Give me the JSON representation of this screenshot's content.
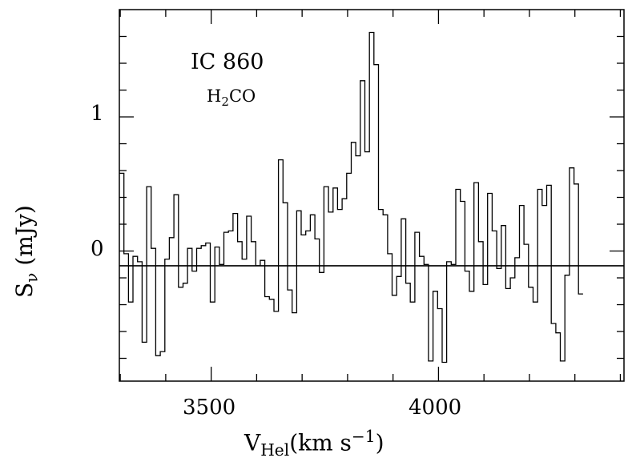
{
  "chart_data": {
    "type": "line",
    "step": true,
    "annotations": {
      "object": "IC 860",
      "line_main": "H",
      "line_sub": "2",
      "line_tail": "CO"
    },
    "xlabel": {
      "main": "V",
      "sub": "Hel",
      "units_pre": "(km s",
      "units_sup": "−1",
      "units_post": ")"
    },
    "ylabel": {
      "main": "S",
      "sub": "ν",
      "units": " (mJy)"
    },
    "xlim": [
      3298,
      4408
    ],
    "ylim": [
      -0.97,
      1.8
    ],
    "xticks_major": [
      3500,
      4000
    ],
    "xtick_labels": [
      "3500",
      "4000"
    ],
    "yticks_major": [
      0,
      1
    ],
    "ytick_labels": [
      "0",
      "1"
    ],
    "grid": false,
    "baseline": -0.11,
    "series": [
      {
        "bin_width": 10,
        "x_start": 3298,
        "values": [
          0.58,
          -0.02,
          -0.38,
          -0.04,
          -0.08,
          -0.68,
          0.48,
          0.02,
          -0.78,
          -0.75,
          -0.06,
          0.1,
          0.42,
          -0.27,
          -0.24,
          0.02,
          -0.15,
          0.02,
          0.04,
          0.06,
          -0.38,
          0.03,
          -0.1,
          0.14,
          0.15,
          0.28,
          0.07,
          -0.06,
          0.26,
          0.07,
          -0.11,
          -0.07,
          -0.34,
          -0.36,
          -0.45,
          0.68,
          0.36,
          -0.29,
          -0.46,
          0.3,
          0.12,
          0.15,
          0.27,
          0.09,
          -0.16,
          0.48,
          0.29,
          0.47,
          0.31,
          0.39,
          0.58,
          0.81,
          0.71,
          1.27,
          0.74,
          1.63,
          1.39,
          0.31,
          0.27,
          -0.02,
          -0.33,
          -0.19,
          0.24,
          -0.24,
          -0.38,
          0.14,
          -0.04,
          -0.1,
          -0.82,
          -0.3,
          -0.43,
          -0.83,
          -0.08,
          -0.1,
          0.46,
          0.37,
          -0.15,
          -0.3,
          0.51,
          0.07,
          -0.25,
          0.43,
          0.15,
          -0.13,
          0.19,
          -0.28,
          -0.2,
          -0.05,
          0.34,
          0.05,
          -0.27,
          -0.38,
          0.46,
          0.34,
          0.49,
          -0.54,
          -0.61,
          -0.82,
          -0.18,
          0.62,
          0.5,
          -0.32
        ]
      }
    ]
  }
}
